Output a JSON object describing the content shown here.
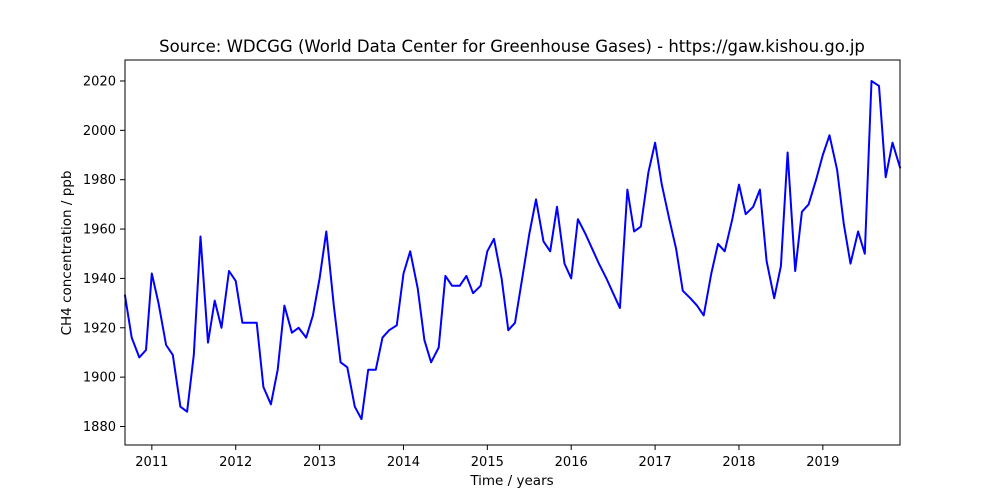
{
  "chart_data": {
    "type": "line",
    "title": "Source: WDCGG (World Data Center for Greenhouse Gases) - https://gaw.kishou.go.jp",
    "xlabel": "Time / years",
    "ylabel": "CH4 concentration / ppb",
    "xlim": [
      2010.68,
      2019.92
    ],
    "ylim": [
      1872.5,
      2028.5
    ],
    "x_ticks": [
      2011,
      2012,
      2013,
      2014,
      2015,
      2016,
      2017,
      2018,
      2019
    ],
    "y_ticks": [
      1880,
      1900,
      1920,
      1940,
      1960,
      1980,
      2000,
      2020
    ],
    "grid": false,
    "legend": "none",
    "color": "#0000ff",
    "series": [
      {
        "name": "",
        "x": [
          2010.68,
          2010.76,
          2010.85,
          2010.93,
          2011.0,
          2011.08,
          2011.17,
          2011.25,
          2011.34,
          2011.42,
          2011.5,
          2011.58,
          2011.67,
          2011.75,
          2011.83,
          2011.92,
          2012.0,
          2012.08,
          2012.17,
          2012.25,
          2012.33,
          2012.42,
          2012.5,
          2012.58,
          2012.67,
          2012.75,
          2012.84,
          2012.92,
          2013.0,
          2013.08,
          2013.17,
          2013.25,
          2013.33,
          2013.42,
          2013.5,
          2013.58,
          2013.67,
          2013.75,
          2013.83,
          2013.92,
          2014.0,
          2014.08,
          2014.17,
          2014.25,
          2014.33,
          2014.42,
          2014.5,
          2014.58,
          2014.67,
          2014.75,
          2014.83,
          2014.92,
          2015.0,
          2015.08,
          2015.17,
          2015.25,
          2015.33,
          2015.42,
          2015.5,
          2015.58,
          2015.67,
          2015.75,
          2015.83,
          2015.92,
          2016.0,
          2016.08,
          2016.17,
          2016.25,
          2016.33,
          2016.42,
          2016.5,
          2016.58,
          2016.67,
          2016.75,
          2016.83,
          2016.92,
          2017.0,
          2017.08,
          2017.17,
          2017.25,
          2017.33,
          2017.42,
          2017.5,
          2017.58,
          2017.67,
          2017.75,
          2017.83,
          2017.92,
          2018.0,
          2018.08,
          2018.17,
          2018.25,
          2018.33,
          2018.42,
          2018.5,
          2018.58,
          2018.67,
          2018.75,
          2018.83,
          2018.92,
          2019.0,
          2019.08,
          2019.17,
          2019.25,
          2019.33,
          2019.42,
          2019.5,
          2019.58,
          2019.67,
          2019.75,
          2019.83,
          2019.92
        ],
        "y": [
          1933,
          1916,
          1908,
          1911,
          1942,
          1930,
          1913,
          1909,
          1888,
          1886,
          1909,
          1957,
          1914,
          1931,
          1920,
          1943,
          1939,
          1922,
          1922,
          1922,
          1896,
          1889,
          1903,
          1929,
          1918,
          1920,
          1916,
          1925,
          1940,
          1959,
          1929,
          1906,
          1904,
          1888,
          1883,
          1903,
          1903,
          1916,
          1919,
          1921,
          1942,
          1951,
          1936,
          1915,
          1906,
          1912,
          1941,
          1937,
          1937,
          1941,
          1934,
          1937,
          1951,
          1956,
          1940,
          1919,
          1922,
          1941,
          1958,
          1972,
          1955,
          1951,
          1969,
          1946,
          1940,
          1964,
          1958,
          1952,
          1946,
          1940,
          1934,
          1928,
          1976,
          1959,
          1961,
          1983,
          1995,
          1978,
          1964,
          1952,
          1935,
          1932,
          1929,
          1925,
          1942,
          1954,
          1951,
          1964,
          1978,
          1966,
          1969,
          1976,
          1947,
          1932,
          1945,
          1991,
          1943,
          1967,
          1970,
          1980,
          1990,
          1998,
          1984,
          1962,
          1946,
          1959,
          1950,
          2020,
          2018,
          1981,
          1995,
          1985
        ]
      }
    ]
  }
}
